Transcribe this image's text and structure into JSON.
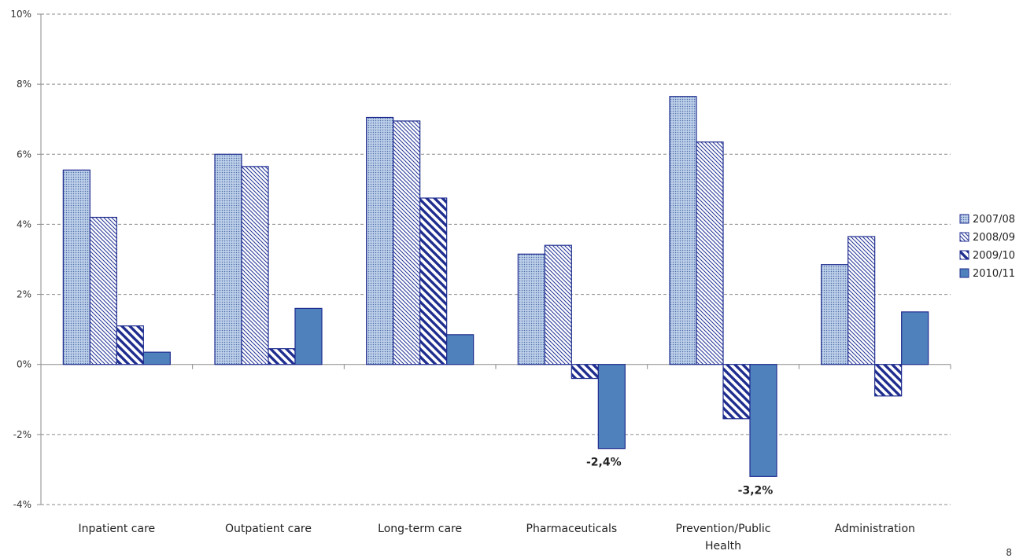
{
  "chart_data": {
    "type": "bar",
    "categories": [
      "Inpatient care",
      "Outpatient care",
      "Long-term care",
      "Pharmaceuticals",
      "Prevention/Public Health",
      "Administration"
    ],
    "category_label_lines": [
      [
        "Inpatient care"
      ],
      [
        "Outpatient care"
      ],
      [
        "Long-term care"
      ],
      [
        "Pharmaceuticals"
      ],
      [
        "Prevention/Public",
        "Health"
      ],
      [
        "Administration"
      ]
    ],
    "series": [
      {
        "name": "2007/08",
        "values": [
          5.55,
          6.0,
          7.05,
          3.15,
          7.65,
          2.85
        ],
        "pattern": "dots",
        "color": "#4f81bd"
      },
      {
        "name": "2008/09",
        "values": [
          4.2,
          5.65,
          6.95,
          3.4,
          6.35,
          3.65
        ],
        "pattern": "fine-diagonal",
        "color": "#1f2d8f"
      },
      {
        "name": "2009/10",
        "values": [
          1.1,
          0.45,
          4.75,
          -0.4,
          -1.55,
          -0.9
        ],
        "pattern": "wide-diagonal",
        "color": "#1f2d8f"
      },
      {
        "name": "2010/11",
        "values": [
          0.35,
          1.6,
          0.85,
          -2.4,
          -3.2,
          1.5
        ],
        "pattern": "solid",
        "color": "#4f81bd"
      }
    ],
    "data_labels": [
      {
        "series": 3,
        "category": 3,
        "text": "-2,4%"
      },
      {
        "series": 3,
        "category": 4,
        "text": "-3,2%"
      }
    ],
    "y_ticks": [
      "-4%",
      "-2%",
      "0%",
      "2%",
      "4%",
      "6%",
      "8%",
      "10%"
    ],
    "ylim": [
      -4,
      10
    ],
    "grid": true,
    "legend_position": "right",
    "title": "",
    "xlabel": "",
    "ylabel": ""
  },
  "page_mark": "8"
}
